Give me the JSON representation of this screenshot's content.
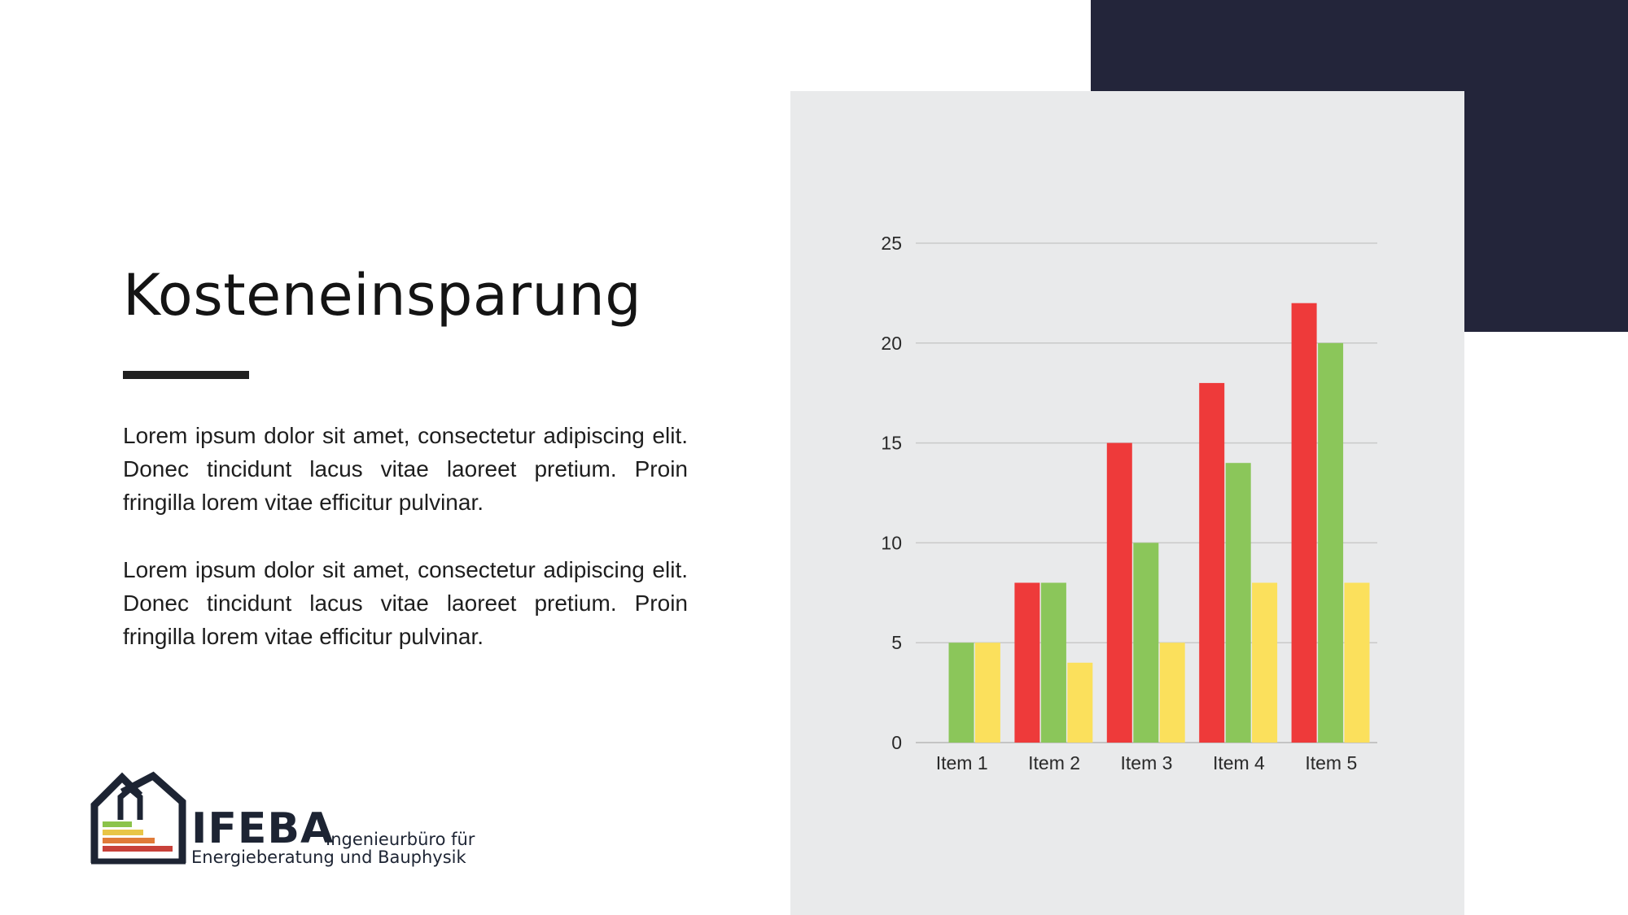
{
  "slide": {
    "title": "Kosteneinsparung",
    "paragraphs": [
      "Lorem ipsum dolor sit amet, consectetur adipiscing elit. Donec tincidunt lacus vitae laoreet pretium. Proin fringilla lorem vitae efficitur pulvinar.",
      "Lorem ipsum dolor sit amet, consectetur adipiscing elit. Donec tincidunt lacus vitae laoreet pretium. Proin fringilla lorem vitae efficitur pulvinar."
    ]
  },
  "logo": {
    "icon": "house-energy-label-icon",
    "name": "IFEBA",
    "subtitle_line1": "Ingenieurbüro für",
    "subtitle_line2": "Energieberatung und Bauphysik",
    "colors": {
      "outline": "#1d2433",
      "bar_green": "#8bc34a",
      "bar_yellow": "#e8c547",
      "bar_orange": "#e07b39",
      "bar_red": "#c8413a"
    }
  },
  "colors": {
    "dark_block": "#23253a",
    "panel": "#e9eaeb",
    "grid": "#c9c9c9"
  },
  "chart_data": {
    "type": "bar",
    "categories": [
      "Item 1",
      "Item 2",
      "Item 3",
      "Item 4",
      "Item 5"
    ],
    "series": [
      {
        "values": [
          0,
          8,
          15,
          18,
          22
        ],
        "color": "#ee3a3a"
      },
      {
        "values": [
          5,
          8,
          10,
          14,
          20
        ],
        "color": "#8bc65a"
      },
      {
        "values": [
          5,
          4,
          5,
          8,
          8
        ],
        "color": "#fbe05c"
      }
    ],
    "ylim": [
      0,
      25
    ],
    "yticks": [
      0,
      5,
      10,
      15,
      20,
      25
    ],
    "grid": true,
    "legend": "none",
    "title": "",
    "xlabel": "",
    "ylabel": ""
  }
}
